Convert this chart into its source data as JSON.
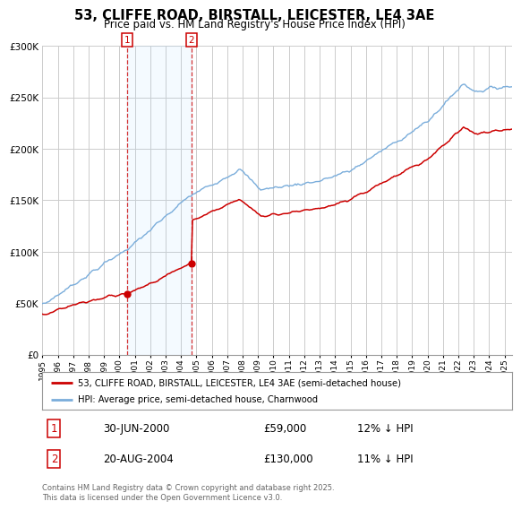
{
  "title": "53, CLIFFE ROAD, BIRSTALL, LEICESTER, LE4 3AE",
  "subtitle": "Price paid vs. HM Land Registry's House Price Index (HPI)",
  "background_color": "#ffffff",
  "plot_bg_color": "#ffffff",
  "grid_color": "#cccccc",
  "hpi_line_color": "#7aaddb",
  "price_line_color": "#cc0000",
  "sale1_year": 2000.5,
  "sale1_price": 59000,
  "sale2_year": 2004.67,
  "sale2_price": 130000,
  "legend_house": "53, CLIFFE ROAD, BIRSTALL, LEICESTER, LE4 3AE (semi-detached house)",
  "legend_hpi": "HPI: Average price, semi-detached house, Charnwood",
  "annotation1_num": "1",
  "annotation1_date": "30-JUN-2000",
  "annotation1_price": "£59,000",
  "annotation1_hpi": "12% ↓ HPI",
  "annotation2_num": "2",
  "annotation2_date": "20-AUG-2004",
  "annotation2_price": "£130,000",
  "annotation2_hpi": "11% ↓ HPI",
  "footer": "Contains HM Land Registry data © Crown copyright and database right 2025.\nThis data is licensed under the Open Government Licence v3.0.",
  "ylim": [
    0,
    300000
  ],
  "yticks": [
    0,
    50000,
    100000,
    150000,
    200000,
    250000,
    300000
  ],
  "ytick_labels": [
    "£0",
    "£50K",
    "£100K",
    "£150K",
    "£200K",
    "£250K",
    "£300K"
  ],
  "xstart": 1995,
  "xend": 2025.5
}
